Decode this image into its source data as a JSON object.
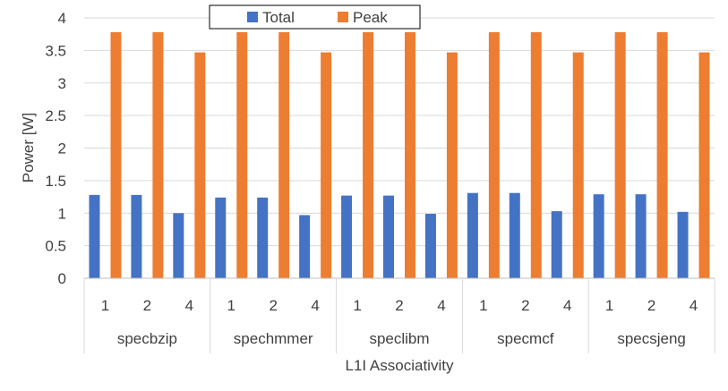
{
  "chart_data": {
    "type": "bar",
    "title": "",
    "xlabel": "L1I Associativity",
    "ylabel": "Power [W]",
    "ylim": [
      0,
      4
    ],
    "yticks": [
      0,
      0.5,
      1,
      1.5,
      2,
      2.5,
      3,
      3.5,
      4
    ],
    "ytick_labels": [
      "0",
      "0.5",
      "1",
      "1.5",
      "2",
      "2.5",
      "3",
      "3.5",
      "4"
    ],
    "grid": true,
    "legend_position": "top-center",
    "groups": [
      {
        "name": "specbzip",
        "categories": [
          "1",
          "2",
          "4"
        ]
      },
      {
        "name": "spechmmer",
        "categories": [
          "1",
          "2",
          "4"
        ]
      },
      {
        "name": "speclibm",
        "categories": [
          "1",
          "2",
          "4"
        ]
      },
      {
        "name": "specmcf",
        "categories": [
          "1",
          "2",
          "4"
        ]
      },
      {
        "name": "specsjeng",
        "categories": [
          "1",
          "2",
          "4"
        ]
      }
    ],
    "series": [
      {
        "name": "Total",
        "color": "#4472c4",
        "values": [
          1.28,
          1.28,
          1.0,
          1.24,
          1.24,
          0.97,
          1.27,
          1.27,
          0.99,
          1.31,
          1.31,
          1.03,
          1.29,
          1.29,
          1.02
        ]
      },
      {
        "name": "Peak",
        "color": "#ed7d31",
        "values": [
          3.78,
          3.78,
          3.47,
          3.78,
          3.78,
          3.47,
          3.78,
          3.78,
          3.47,
          3.78,
          3.78,
          3.47,
          3.78,
          3.78,
          3.47
        ]
      }
    ]
  }
}
